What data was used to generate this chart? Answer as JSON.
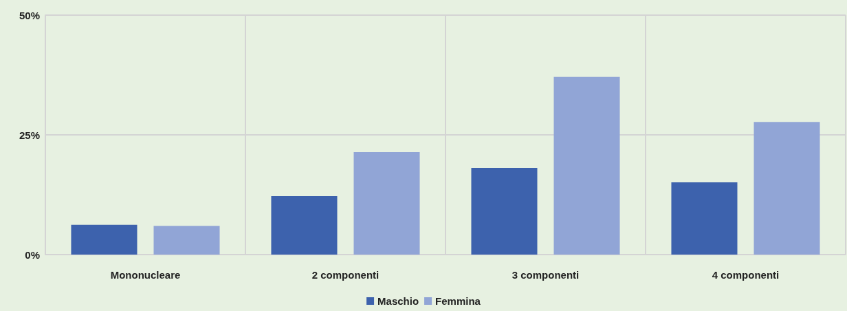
{
  "chart_data": {
    "type": "bar",
    "categories": [
      "Mononucleare",
      "2 componenti",
      "3 componenti",
      "4 componenti"
    ],
    "series": [
      {
        "name": "Maschio",
        "color": "#3d62ad",
        "values": [
          6.2,
          12.2,
          18.1,
          15.1
        ]
      },
      {
        "name": "Femmina",
        "color": "#91a5d6",
        "values": [
          6.0,
          21.4,
          37.1,
          27.7
        ]
      }
    ],
    "ylim": [
      0,
      50
    ],
    "yticks": [
      {
        "value": 0,
        "label": "0%"
      },
      {
        "value": 25,
        "label": "25%"
      },
      {
        "value": 50,
        "label": "50%"
      }
    ],
    "grid": true,
    "legend": "bottom"
  }
}
